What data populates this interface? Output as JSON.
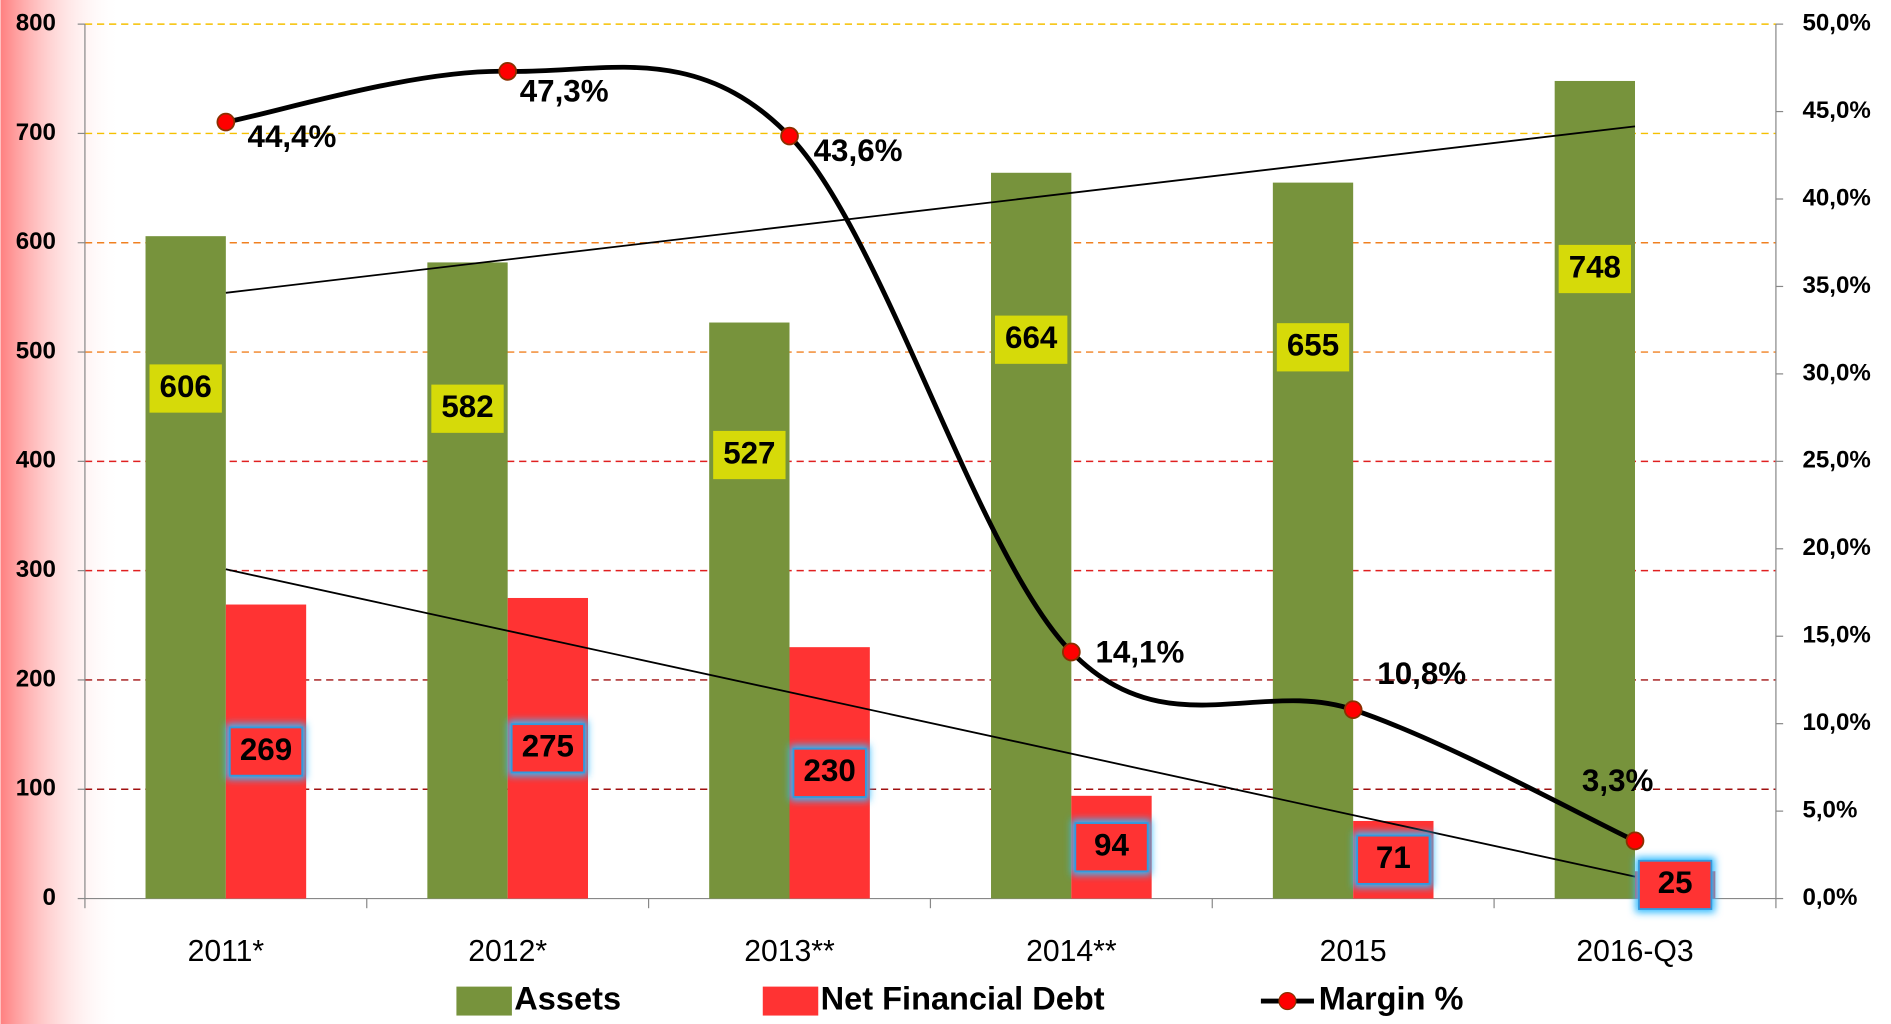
{
  "chart_data": {
    "type": "bar",
    "categories": [
      "2011*",
      "2012*",
      "2013**",
      "2014**",
      "2015",
      "2016-Q3"
    ],
    "series": [
      {
        "name": "Assets",
        "color": "#77933c",
        "values": [
          606,
          582,
          527,
          664,
          655,
          748
        ]
      },
      {
        "name": "Net Financial Debt",
        "color": "#ff3333",
        "values": [
          269,
          275,
          230,
          94,
          71,
          25
        ]
      },
      {
        "name": "Margin %",
        "type": "line",
        "axis": "y2",
        "color": "#000000",
        "marker_color": "#ff0000",
        "values": [
          44.4,
          47.3,
          43.6,
          14.1,
          10.8,
          3.3
        ],
        "value_labels": [
          "44,4%",
          "47,3%",
          "43,6%",
          "14,1%",
          "10,8%",
          "3,3%"
        ]
      }
    ],
    "ylim": [
      0,
      800
    ],
    "yticks": [
      0,
      100,
      200,
      300,
      400,
      500,
      600,
      700,
      800
    ],
    "y2lim": [
      0,
      50
    ],
    "y2ticks": [
      {
        "value": 0,
        "label": "0,0%"
      },
      {
        "value": 5,
        "label": "5,0%"
      },
      {
        "value": 10,
        "label": "10,0%"
      },
      {
        "value": 15,
        "label": "15,0%"
      },
      {
        "value": 20,
        "label": "20,0%"
      },
      {
        "value": 25,
        "label": "25,0%"
      },
      {
        "value": 30,
        "label": "30,0%"
      },
      {
        "value": 35,
        "label": "35,0%"
      },
      {
        "value": 40,
        "label": "40,0%"
      },
      {
        "value": 45,
        "label": "45,0%"
      },
      {
        "value": 50,
        "label": "50,0%"
      }
    ],
    "grid": true,
    "trendlines": true,
    "legend": "bottom"
  }
}
